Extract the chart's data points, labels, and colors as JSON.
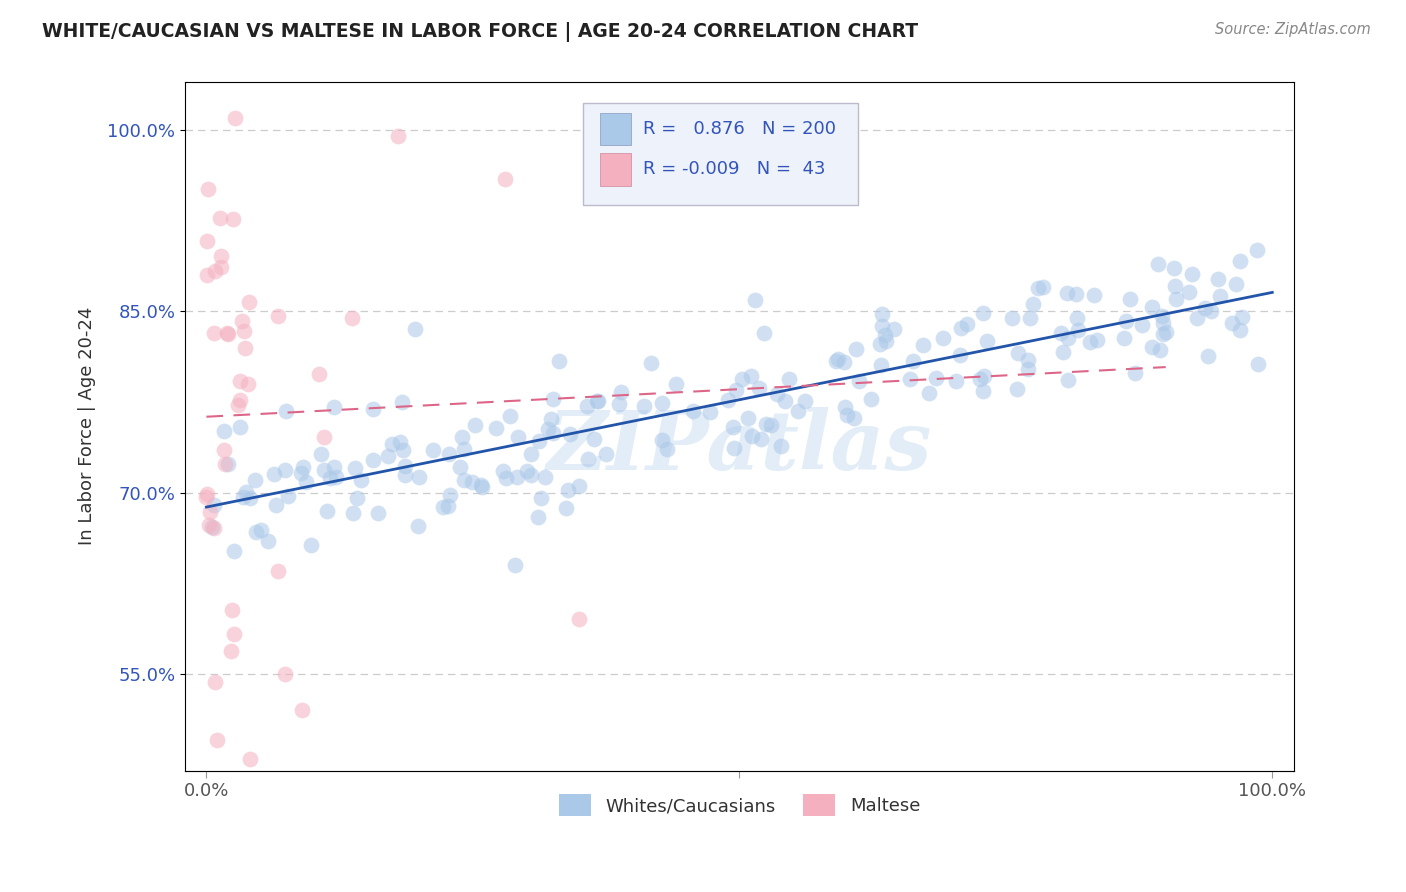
{
  "title": "WHITE/CAUCASIAN VS MALTESE IN LABOR FORCE | AGE 20-24 CORRELATION CHART",
  "source": "Source: ZipAtlas.com",
  "ylabel": "In Labor Force | Age 20-24",
  "watermark": "ZIPatlas",
  "blue_R": 0.876,
  "blue_N": 200,
  "pink_R": -0.009,
  "pink_N": 43,
  "xlim": [
    -0.02,
    1.02
  ],
  "ylim": [
    0.47,
    1.04
  ],
  "yticks": [
    0.55,
    0.7,
    0.85,
    1.0
  ],
  "ytick_labels": [
    "55.0%",
    "70.0%",
    "85.0%",
    "100.0%"
  ],
  "xtick_positions": [
    0.0,
    0.5,
    1.0
  ],
  "xtick_labels": [
    "0.0%",
    "",
    "100.0%"
  ],
  "blue_color": "#aac8e8",
  "blue_line_color": "#2255aa",
  "pink_color": "#f5b0c0",
  "pink_line_color": "#dd6688",
  "grid_color": "#cccccc",
  "background_color": "#ffffff",
  "legend_box_facecolor": "#eef2fb",
  "legend_box_edgecolor": "#bbbbcc",
  "text_color": "#3355bb",
  "title_color": "#222222",
  "source_color": "#888888",
  "blue_scatter_seed": 42,
  "pink_scatter_seed": 7,
  "blue_dot_size": 130,
  "pink_dot_size": 130,
  "blue_alpha": 0.55,
  "pink_alpha": 0.55
}
